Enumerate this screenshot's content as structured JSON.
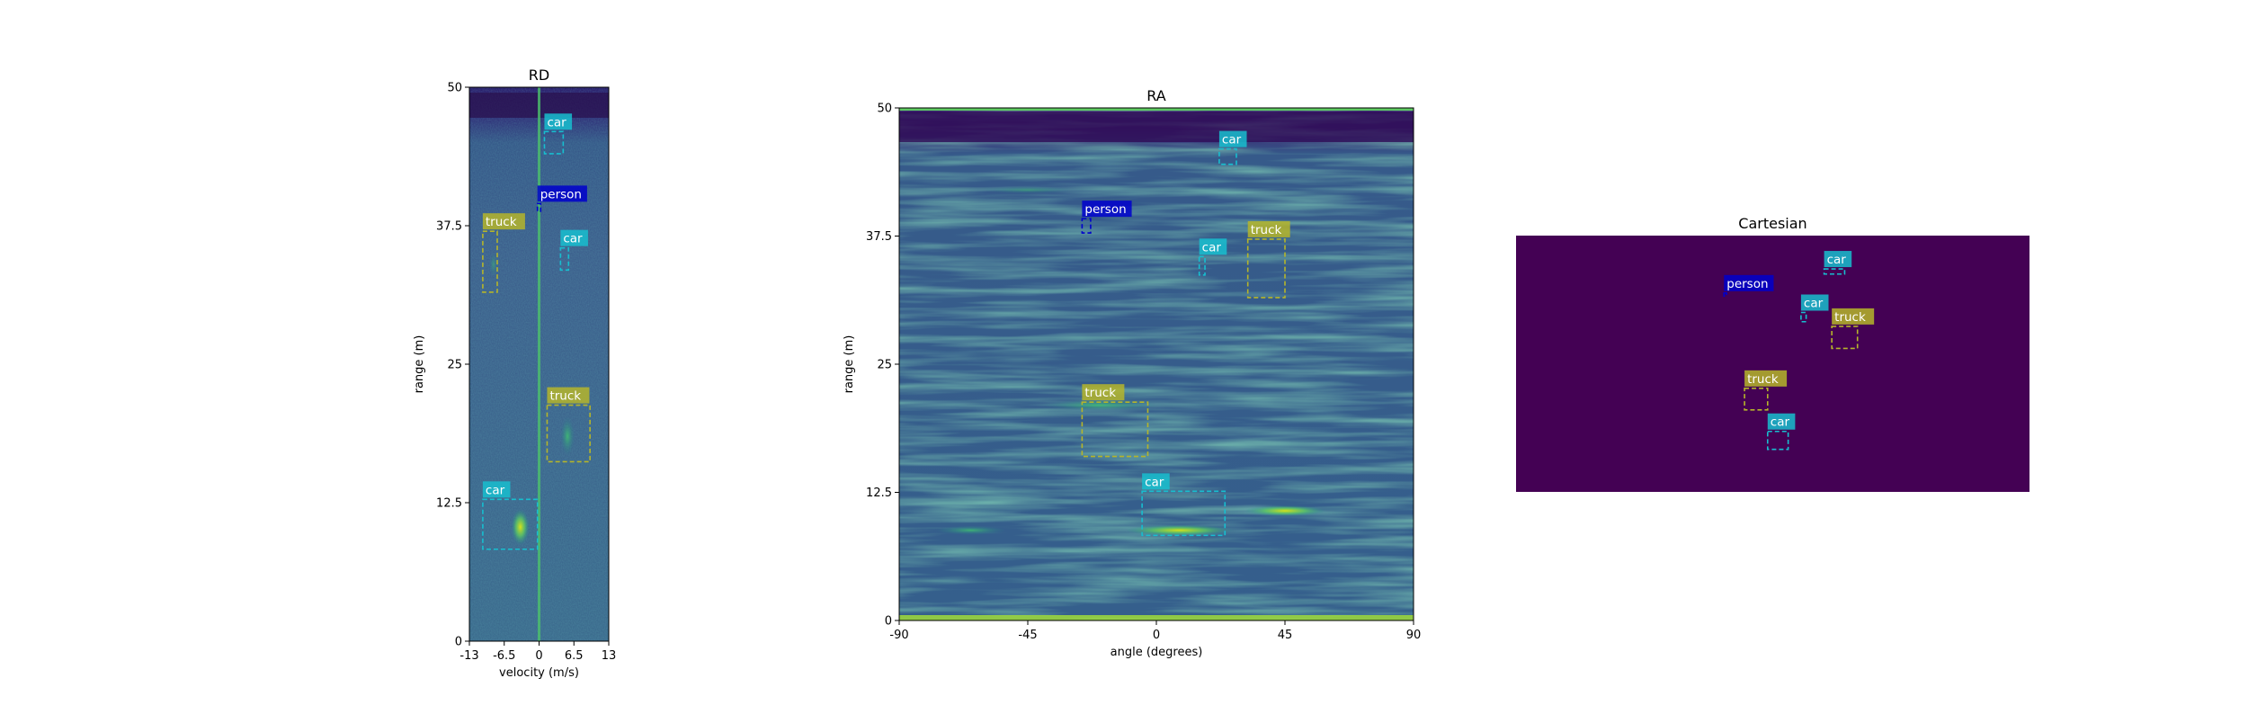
{
  "chart_data": [
    {
      "type": "heatmap",
      "title": "RD",
      "xlabel": "velocity (m/s)",
      "ylabel": "range (m)",
      "xlim": [
        -13,
        13
      ],
      "ylim": [
        0,
        50
      ],
      "xticks": [
        {
          "value": -13,
          "label": "-13"
        },
        {
          "value": -6.5,
          "label": "-6.5"
        },
        {
          "value": 0,
          "label": "0"
        },
        {
          "value": 6.5,
          "label": "6.5"
        },
        {
          "value": 13,
          "label": "13"
        }
      ],
      "yticks": [
        {
          "value": 0,
          "label": "0"
        },
        {
          "value": 12.5,
          "label": "12.5"
        },
        {
          "value": 25,
          "label": "25"
        },
        {
          "value": 37.5,
          "label": "37.5"
        },
        {
          "value": 50,
          "label": "50"
        }
      ],
      "boxes": [
        {
          "label": "car",
          "color": "#17becf",
          "x0": 1.0,
          "x1": 4.5,
          "y0": 44.0,
          "y1": 46.0
        },
        {
          "label": "person",
          "color": "#0000cd",
          "x0": -0.3,
          "x1": 0.3,
          "y0": 38.8,
          "y1": 39.5
        },
        {
          "label": "truck",
          "color": "#b5b52a",
          "x0": -10.5,
          "x1": -7.8,
          "y0": 31.5,
          "y1": 37.0
        },
        {
          "label": "car",
          "color": "#17becf",
          "x0": 4.0,
          "x1": 5.5,
          "y0": 33.5,
          "y1": 35.5
        },
        {
          "label": "truck",
          "color": "#b5b52a",
          "x0": 1.5,
          "x1": 9.5,
          "y0": 16.2,
          "y1": 21.3
        },
        {
          "label": "car",
          "color": "#17becf",
          "x0": -10.5,
          "x1": -0.3,
          "y0": 8.3,
          "y1": 12.8
        }
      ]
    },
    {
      "type": "heatmap",
      "title": "RA",
      "xlabel": "angle (degrees)",
      "ylabel": "range (m)",
      "xlim": [
        -90,
        90
      ],
      "ylim": [
        0,
        50
      ],
      "xticks": [
        {
          "value": -90,
          "label": "-90"
        },
        {
          "value": -45,
          "label": "-45"
        },
        {
          "value": 0,
          "label": "0"
        },
        {
          "value": 45,
          "label": "45"
        },
        {
          "value": 90,
          "label": "90"
        }
      ],
      "yticks": [
        {
          "value": 0,
          "label": "0"
        },
        {
          "value": 12.5,
          "label": "12.5"
        },
        {
          "value": 25,
          "label": "25"
        },
        {
          "value": 37.5,
          "label": "37.5"
        },
        {
          "value": 50,
          "label": "50"
        }
      ],
      "boxes": [
        {
          "label": "car",
          "color": "#17becf",
          "x0": 22,
          "x1": 28,
          "y0": 44.5,
          "y1": 46.0
        },
        {
          "label": "person",
          "color": "#0000cd",
          "x0": -26,
          "x1": -23,
          "y0": 37.8,
          "y1": 39.2
        },
        {
          "label": "car",
          "color": "#17becf",
          "x0": 15,
          "x1": 17,
          "y0": 33.7,
          "y1": 35.5
        },
        {
          "label": "truck",
          "color": "#b5b52a",
          "x0": 32,
          "x1": 45,
          "y0": 31.5,
          "y1": 37.2
        },
        {
          "label": "truck",
          "color": "#b5b52a",
          "x0": -26,
          "x1": -3,
          "y0": 16.0,
          "y1": 21.3
        },
        {
          "label": "car",
          "color": "#17becf",
          "x0": -5,
          "x1": 24,
          "y0": 8.3,
          "y1": 12.6
        }
      ]
    },
    {
      "type": "heatmap",
      "title": "Cartesian",
      "xlim": [
        0,
        100
      ],
      "ylim": [
        0,
        50
      ],
      "background": "#440154",
      "boxes": [
        {
          "label": "car",
          "color": "#17becf",
          "x0": 60,
          "x1": 64,
          "y0": 42.5,
          "y1": 43.5
        },
        {
          "label": "person",
          "color": "#0000cd",
          "x0": 40.5,
          "x1": 41.0,
          "y0": 38.2,
          "y1": 38.8
        },
        {
          "label": "car",
          "color": "#17becf",
          "x0": 55.5,
          "x1": 56.5,
          "y0": 33.2,
          "y1": 35.0
        },
        {
          "label": "truck",
          "color": "#b5b52a",
          "x0": 61.5,
          "x1": 66.5,
          "y0": 28.0,
          "y1": 32.3
        },
        {
          "label": "truck",
          "color": "#b5b52a",
          "x0": 44.5,
          "x1": 49.0,
          "y0": 16.0,
          "y1": 20.2
        },
        {
          "label": "car",
          "color": "#17becf",
          "x0": 49.0,
          "x1": 53.0,
          "y0": 8.3,
          "y1": 11.8
        }
      ]
    }
  ]
}
